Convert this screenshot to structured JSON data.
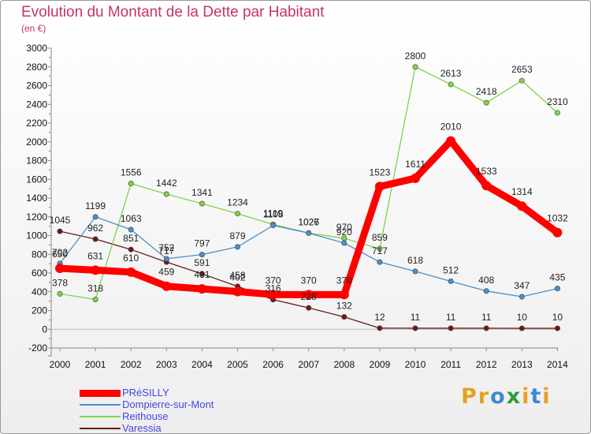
{
  "title": "Evolution du Montant de la Dette par Habitant",
  "subtitle": "(en €)",
  "brand": {
    "letters": [
      "P",
      "r",
      "o",
      "x",
      "i",
      "t",
      "i"
    ],
    "colors": [
      "#e8a020",
      "#e8a020",
      "#3a8ad4",
      "#2e9a3a",
      "#e8a020",
      "#3a8ad4",
      "#e8a020"
    ]
  },
  "chart_data": {
    "type": "line",
    "title": "Evolution du Montant de la Dette par Habitant",
    "subtitle": "(en €)",
    "x": [
      2000,
      2001,
      2002,
      2003,
      2004,
      2005,
      2006,
      2007,
      2008,
      2009,
      2010,
      2011,
      2012,
      2013,
      2014
    ],
    "ylim": [
      -200,
      3000
    ],
    "yticks": [
      -200,
      0,
      200,
      400,
      600,
      800,
      1000,
      1200,
      1400,
      1600,
      1800,
      2000,
      2200,
      2400,
      2600,
      2800,
      3000
    ],
    "grid": false,
    "legend": "bottom-left",
    "series": [
      {
        "name": "PRéSILLY",
        "color": "#ff0000",
        "values": [
          650,
          631,
          610,
          459,
          431,
          402,
          370,
          370,
          370,
          1523,
          1611,
          2010,
          1533,
          1314,
          1032
        ]
      },
      {
        "name": "Dompierre-sur-Mont",
        "color": "#4a90c8",
        "values": [
          702,
          1199,
          1063,
          752,
          797,
          879,
          1108,
          1026,
          920,
          717,
          618,
          512,
          408,
          347,
          435
        ]
      },
      {
        "name": "Reithouse",
        "color": "#7ed34a",
        "values": [
          378,
          318,
          1556,
          1442,
          1341,
          1234,
          1119,
          1027,
          970,
          859,
          2800,
          2613,
          2418,
          2653,
          2310
        ]
      },
      {
        "name": "Varessia",
        "color": "#6b1a1a",
        "values": [
          1045,
          962,
          851,
          717,
          591,
          458,
          316,
          228,
          132,
          12,
          11,
          11,
          11,
          10,
          10
        ]
      }
    ]
  }
}
